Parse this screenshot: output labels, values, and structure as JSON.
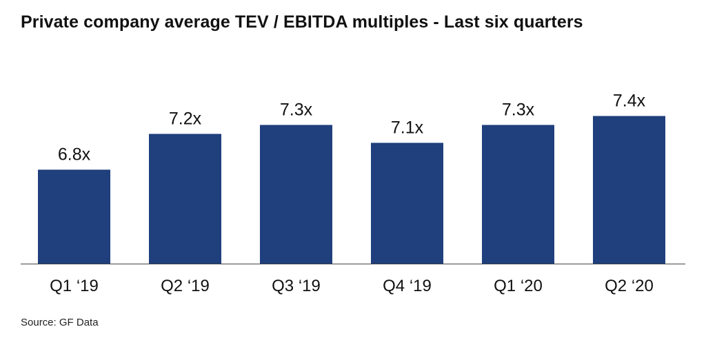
{
  "title": "Private company average TEV / EBITDA multiples - Last six quarters",
  "source": "Source: GF Data",
  "colors": {
    "bar": "#1f3f7d",
    "axis": "#444444",
    "text": "#111111"
  },
  "chart_data": {
    "type": "bar",
    "title": "Private company average TEV / EBITDA multiples - Last six quarters",
    "categories": [
      "Q1 ‘19",
      "Q2 ‘19",
      "Q3 ‘19",
      "Q4 ‘19",
      "Q1 ‘20",
      "Q2 ‘20"
    ],
    "values": [
      6.8,
      7.2,
      7.3,
      7.1,
      7.3,
      7.4
    ],
    "data_labels": [
      "6.8x",
      "7.2x",
      "7.3x",
      "7.1x",
      "7.3x",
      "7.4x"
    ],
    "xlabel": "",
    "ylabel": "",
    "grid": false,
    "legend": "none"
  }
}
